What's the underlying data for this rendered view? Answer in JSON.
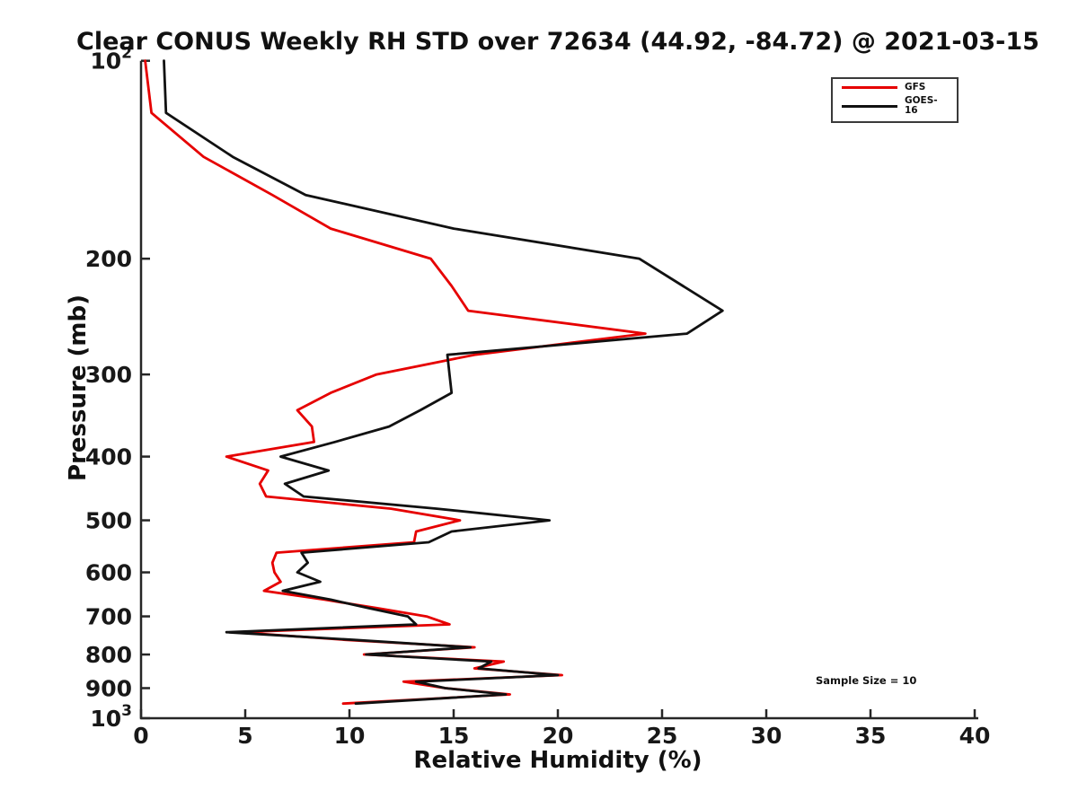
{
  "figure": {
    "title": "Clear CONUS Weekly RH STD over 72634 (44.92, -84.72) @ 2021-03-15",
    "background_color": "#ffffff",
    "axis_color": "#262626",
    "text_color": "#111111"
  },
  "axes": {
    "x": {
      "label": "Relative Humidity (%)",
      "min": 0,
      "max": 40,
      "ticks": [
        0,
        5,
        10,
        15,
        20,
        25,
        30,
        35,
        40
      ]
    },
    "y": {
      "label": "Pressure (mb)",
      "scale": "log",
      "min": 100,
      "max": 1000,
      "inverted": true,
      "ticks": [
        {
          "p": 100,
          "label": "10",
          "sup": "2"
        },
        {
          "p": 200,
          "label": "200"
        },
        {
          "p": 300,
          "label": "300"
        },
        {
          "p": 400,
          "label": "400"
        },
        {
          "p": 500,
          "label": "500"
        },
        {
          "p": 600,
          "label": "600"
        },
        {
          "p": 700,
          "label": "700"
        },
        {
          "p": 800,
          "label": "800"
        },
        {
          "p": 900,
          "label": "900"
        },
        {
          "p": 1000,
          "label": "10",
          "sup": "3"
        }
      ]
    }
  },
  "legend": {
    "position": "upper-right",
    "items": [
      {
        "label": "GFS",
        "color": "#e60000"
      },
      {
        "label": "GOES-16",
        "color": "#111111"
      }
    ]
  },
  "annotations": {
    "sample_size": "Sample Size = 10"
  },
  "chart_data": {
    "type": "line",
    "title": "Clear CONUS Weekly RH STD over 72634 (44.92, -84.72) @ 2021-03-15",
    "xlabel": "Relative Humidity (%)",
    "ylabel": "Pressure (mb)",
    "xlim": [
      0,
      40
    ],
    "ylim": [
      100,
      1000
    ],
    "yscale": "log",
    "y_inverted": true,
    "grid": false,
    "legend_position": "upper right",
    "sample_size": 10,
    "pressure_mb": [
      100,
      120,
      140,
      160,
      180,
      200,
      220,
      240,
      260,
      280,
      300,
      320,
      340,
      360,
      380,
      400,
      420,
      440,
      460,
      480,
      500,
      520,
      540,
      560,
      580,
      600,
      620,
      640,
      660,
      680,
      700,
      720,
      740,
      760,
      780,
      800,
      820,
      840,
      860,
      880,
      900,
      920,
      950
    ],
    "series": [
      {
        "name": "GFS",
        "color": "#e60000",
        "rh_std_percent": [
          0.2,
          0.5,
          3.0,
          6.3,
          9.1,
          13.9,
          14.9,
          15.7,
          24.2,
          16.0,
          11.3,
          9.1,
          7.5,
          8.2,
          8.3,
          4.1,
          6.1,
          5.7,
          6.0,
          12.0,
          15.3,
          13.2,
          13.1,
          6.5,
          6.3,
          6.4,
          6.7,
          5.9,
          8.8,
          11.3,
          13.7,
          14.8,
          4.6,
          9.8,
          16.0,
          10.7,
          17.4,
          16.0,
          20.2,
          12.6,
          14.6,
          17.7,
          9.7
        ]
      },
      {
        "name": "GOES-16",
        "color": "#111111",
        "rh_std_percent": [
          1.1,
          1.2,
          4.4,
          7.9,
          15.0,
          23.9,
          26.0,
          27.9,
          26.2,
          14.7,
          14.8,
          14.9,
          13.4,
          11.9,
          9.3,
          6.7,
          9.0,
          6.9,
          7.8,
          14.2,
          19.6,
          14.9,
          13.8,
          7.7,
          8.0,
          7.5,
          8.6,
          6.8,
          9.1,
          10.9,
          12.8,
          13.2,
          4.1,
          10.2,
          15.8,
          10.8,
          16.8,
          16.2,
          20.0,
          13.2,
          14.6,
          17.5,
          10.3
        ]
      }
    ]
  }
}
